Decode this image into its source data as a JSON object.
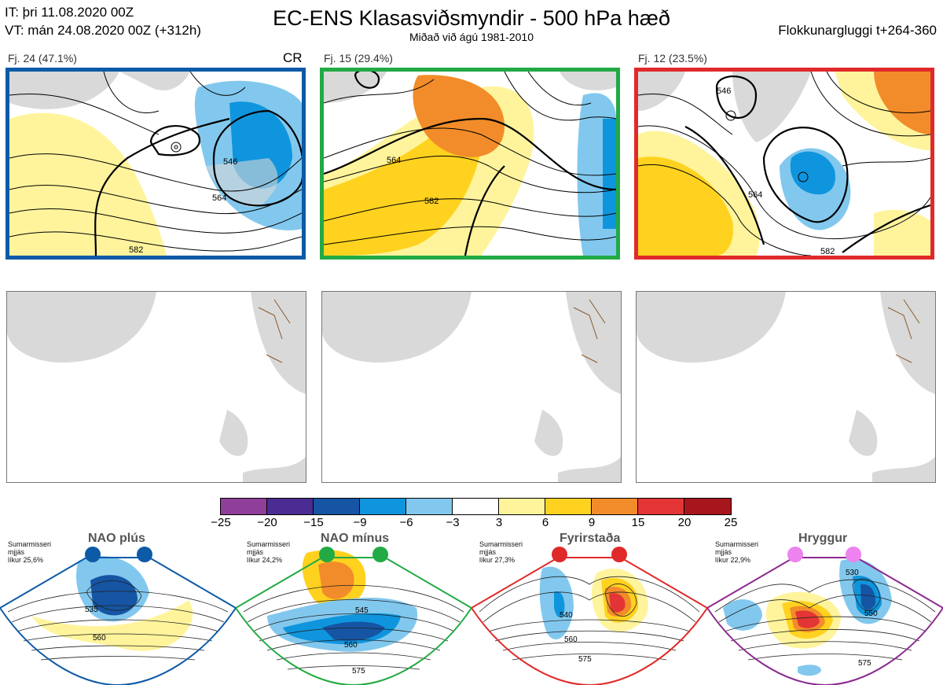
{
  "header": {
    "init_time": "IT: þri 11.08.2020 00Z",
    "valid_time": "VT: mán 24.08.2020 00Z  (+312h)",
    "title": "EC-ENS Klasasviðsmyndir - 500 hPa hæð",
    "subtitle": "Miðað við ágú 1981-2010",
    "window": "Flokkunargluggi t+264-360"
  },
  "clusters": [
    {
      "label": "Fj. 24 (47.1%)",
      "tag": "CR",
      "border_color": "#0d5aa7",
      "contours": [
        "546",
        "564",
        "582"
      ]
    },
    {
      "label": "Fj. 15 (29.4%)",
      "tag": "",
      "border_color": "#22aa44",
      "contours": [
        "564",
        "582"
      ]
    },
    {
      "label": "Fj. 12 (23.5%)",
      "tag": "",
      "border_color": "#e02a2a",
      "contours": [
        "546",
        "564",
        "582"
      ]
    }
  ],
  "colorbar": {
    "colors": [
      "#8f3f9a",
      "#4a2c93",
      "#1555a3",
      "#0f95dd",
      "#82c8ee",
      "#ffffff",
      "#fff49c",
      "#ffd21f",
      "#f28c2a",
      "#e33535",
      "#a8161d"
    ],
    "ticks": [
      "−25",
      "−20",
      "−15",
      "−9",
      "−6",
      "−3",
      "3",
      "6",
      "9",
      "15",
      "20",
      "25"
    ]
  },
  "regimes": [
    {
      "name": "NAO plús",
      "side_lines": [
        "Sumarmisseri",
        "mjjás",
        "líkur 25,6%"
      ],
      "color": "#0d5aa7",
      "dot_color": "#0d5aa7",
      "contours": [
        "535",
        "560"
      ]
    },
    {
      "name": "NAO mínus",
      "side_lines": [
        "Sumarmisseri",
        "mjjás",
        "líkur 24,2%"
      ],
      "color": "#22aa44",
      "dot_color": "#22aa44",
      "contours": [
        "545",
        "560",
        "575"
      ]
    },
    {
      "name": "Fyrirstaða",
      "side_lines": [
        "Sumarmisseri",
        "mjjás",
        "líkur 27,3%"
      ],
      "color": "#e02a2a",
      "dot_color": "#e02a2a",
      "contours": [
        "540",
        "560",
        "575"
      ]
    },
    {
      "name": "Hryggur",
      "side_lines": [
        "Sumarmisseri",
        "mjjás",
        "líkur 22,9%"
      ],
      "color": "#8b2a8e",
      "dot_color": "#ee82ee",
      "contours": [
        "530",
        "550",
        "575"
      ]
    }
  ]
}
